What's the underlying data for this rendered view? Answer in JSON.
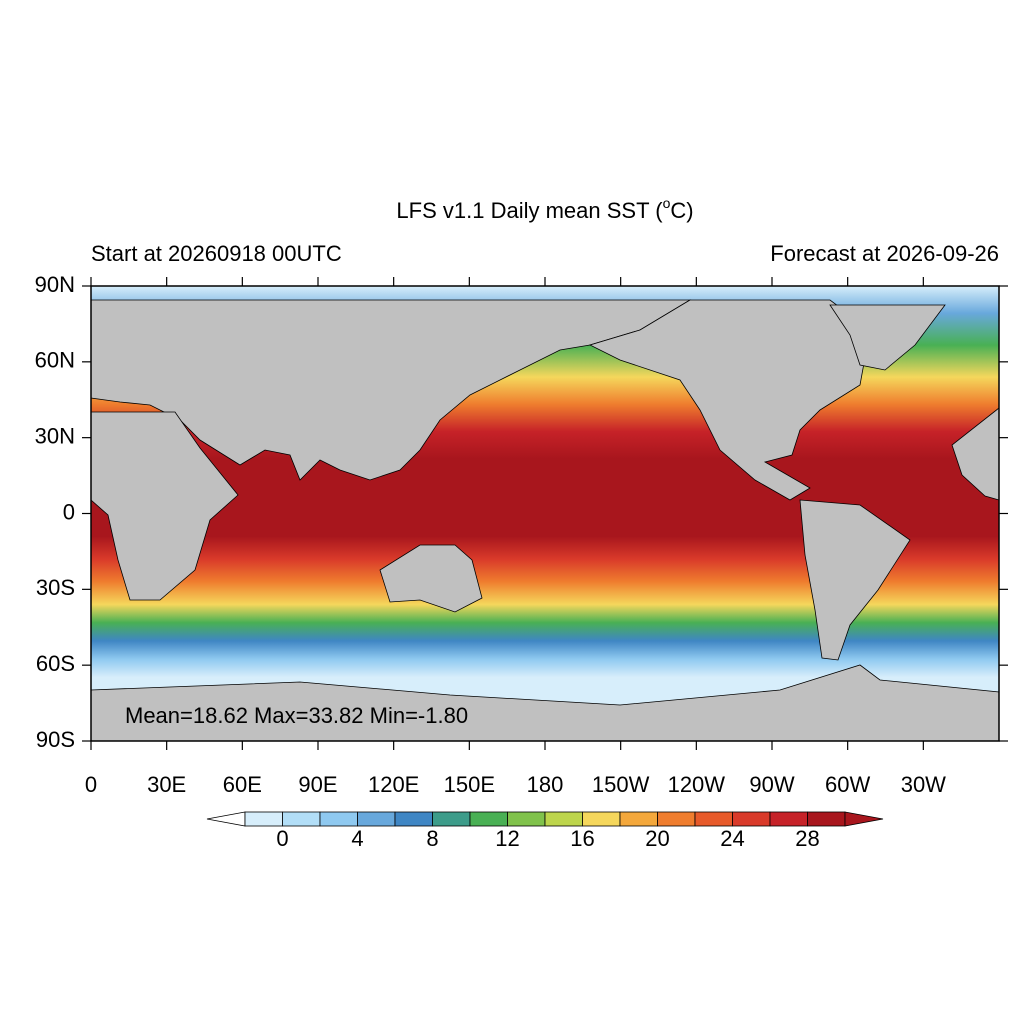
{
  "title": "LFS v1.1 Daily mean SST (",
  "title_sup": "o",
  "title_end": "C)",
  "left_subtitle": "Start at 20260918 00UTC",
  "right_subtitle": "Forecast at 2026-09-26",
  "annotation": "Mean=18.62  Max=33.82  Min=-1.80",
  "lon_range": [
    0,
    360
  ],
  "lat_range": [
    -90,
    90
  ],
  "lon_ticks": [
    {
      "value": 0,
      "label": "0"
    },
    {
      "value": 30,
      "label": "30E"
    },
    {
      "value": 60,
      "label": "60E"
    },
    {
      "value": 90,
      "label": "90E"
    },
    {
      "value": 120,
      "label": "120E"
    },
    {
      "value": 150,
      "label": "150E"
    },
    {
      "value": 180,
      "label": "180"
    },
    {
      "value": 210,
      "label": "150W"
    },
    {
      "value": 240,
      "label": "120W"
    },
    {
      "value": 270,
      "label": "90W"
    },
    {
      "value": 300,
      "label": "60W"
    },
    {
      "value": 330,
      "label": "30W"
    }
  ],
  "lat_ticks": [
    {
      "value": 90,
      "label": "90N"
    },
    {
      "value": 60,
      "label": "60N"
    },
    {
      "value": 30,
      "label": "30N"
    },
    {
      "value": 0,
      "label": "0"
    },
    {
      "value": -30,
      "label": "30S"
    },
    {
      "value": -60,
      "label": "60S"
    },
    {
      "value": -90,
      "label": "90S"
    }
  ],
  "colorbar": {
    "range": [
      -2,
      30
    ],
    "ticks": [
      0,
      4,
      8,
      12,
      16,
      20,
      24,
      28
    ],
    "colors": [
      "#ffffff",
      "#d7eefb",
      "#b2def7",
      "#8fc9f0",
      "#68a8dc",
      "#3f86c4",
      "#3d9c8a",
      "#49b054",
      "#80c24b",
      "#bdd54c",
      "#f5d75c",
      "#f4a83c",
      "#ef7d2e",
      "#e75a2a",
      "#d93a2a",
      "#c62228",
      "#a8161d",
      "#a8161d"
    ]
  }
}
